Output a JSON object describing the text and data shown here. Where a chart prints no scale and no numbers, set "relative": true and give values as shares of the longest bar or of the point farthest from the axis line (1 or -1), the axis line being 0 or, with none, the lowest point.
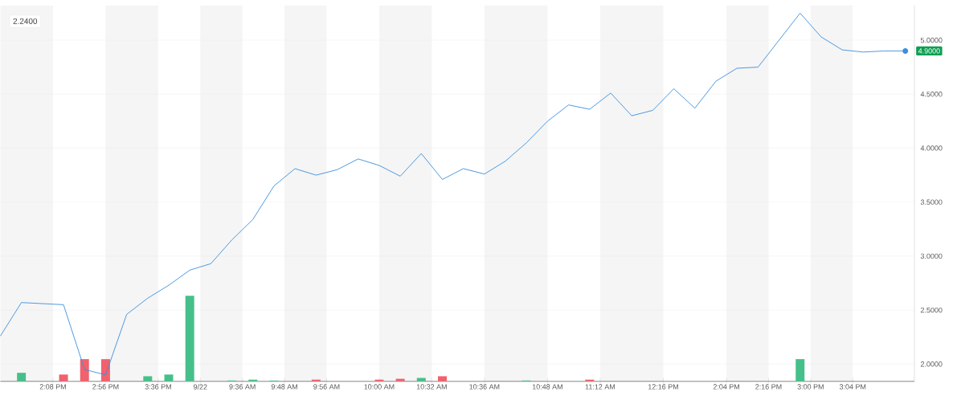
{
  "chart_data": [
    {
      "type": "line",
      "categories": [
        null,
        null,
        null,
        null,
        null,
        "2:08 PM",
        null,
        null,
        null,
        null,
        "2:56 PM",
        null,
        null,
        null,
        null,
        "3:36 PM",
        null,
        null,
        null,
        "9/22",
        null,
        null,
        null,
        "9:36 AM",
        null,
        null,
        null,
        "9:48 AM",
        null,
        null,
        null,
        "9:56 AM",
        null,
        null,
        null,
        null,
        "10:00 AM",
        null,
        null,
        null,
        null,
        "10:32 AM",
        null,
        null,
        null,
        null,
        "10:36 AM",
        null,
        null,
        null,
        null,
        null,
        "10:48 AM",
        null,
        null,
        null,
        null,
        "11:12 AM",
        null,
        null,
        null,
        null,
        null,
        "12:16 PM",
        null,
        null,
        null,
        null,
        null,
        "2:04 PM",
        null,
        null,
        null,
        "2:16 PM",
        null,
        null,
        null,
        "3:00 PM",
        null,
        null,
        null,
        "3:04 PM",
        null,
        null,
        null,
        null,
        null
      ],
      "ylim": [
        1.84,
        5.32
      ],
      "yticks": [
        {
          "value": 2,
          "label": "2.0000"
        },
        {
          "value": 2.5,
          "label": "2.5000"
        },
        {
          "value": 3,
          "label": "3.0000"
        },
        {
          "value": 3.5,
          "label": "3.5000"
        },
        {
          "value": 4,
          "label": "4.0000"
        },
        {
          "value": 4.5,
          "label": "4.5000"
        },
        {
          "value": 5,
          "label": "5.0000"
        }
      ],
      "grid": "y",
      "tick_labels": "y",
      "bands": [
        {
          "axis": "x",
          "from": "2:56 PM",
          "to": "3:36 PM",
          "color": "#f5f5f5"
        },
        {
          "axis": "x",
          "from": "9/22",
          "to": "9:36 AM",
          "color": "#f5f5f5"
        },
        {
          "axis": "x",
          "from": "9:48 AM",
          "to": "9:56 AM",
          "color": "#f5f5f5"
        },
        {
          "axis": "x",
          "from": "10:00 AM",
          "to": "10:32 AM",
          "color": "#f5f5f5"
        },
        {
          "axis": "x",
          "from": "10:36 AM",
          "to": "10:48 AM",
          "color": "#f5f5f5"
        },
        {
          "axis": "x",
          "from": "11:12 AM",
          "to": "12:16 PM",
          "color": "#f5f5f5"
        },
        {
          "axis": "x",
          "from": "2:04 PM",
          "to": "2:16 PM",
          "color": "#f5f5f5"
        },
        {
          "axis": "x",
          "from": "3:00 PM",
          "to": "3:04 PM",
          "color": "#f5f5f5"
        }
      ],
      "series": [
        {
          "color": "#3b8fdd",
          "values": [
            2.26,
            null,
            2.57,
            null,
            null,
            null,
            2.55,
            null,
            1.95,
            null,
            1.9,
            null,
            2.46,
            null,
            2.61,
            null,
            2.73,
            null,
            2.87,
            null,
            2.93,
            null,
            3.15,
            null,
            3.34,
            null,
            3.65,
            null,
            3.81,
            null,
            3.75,
            null,
            3.8,
            null,
            3.9,
            null,
            3.84,
            null,
            3.74,
            null,
            3.95,
            null,
            3.71,
            null,
            3.81,
            null,
            3.76,
            null,
            3.88,
            null,
            4.05,
            null,
            4.25,
            null,
            4.4,
            null,
            4.36,
            null,
            4.51,
            null,
            4.3,
            null,
            4.35,
            null,
            4.55,
            null,
            4.37,
            null,
            4.62,
            null,
            4.74,
            null,
            4.75,
            null,
            null,
            null,
            5.25,
            null,
            5.03,
            null,
            4.91,
            null,
            4.89,
            null,
            4.9,
            null,
            4.9
          ]
        }
      ],
      "annotations": [
        "2.2400",
        {
          "text": "4.9000",
          "y": 4.9
        }
      ]
    },
    {
      "type": "bar",
      "relative": true,
      "tick_labels": "x",
      "categories": [
        null,
        null,
        null,
        null,
        null,
        "2:08 PM",
        null,
        null,
        null,
        null,
        "2:56 PM",
        null,
        null,
        null,
        null,
        "3:36 PM",
        null,
        null,
        null,
        "9/22",
        null,
        null,
        null,
        "9:36 AM",
        null,
        null,
        null,
        "9:48 AM",
        null,
        null,
        null,
        "9:56 AM",
        null,
        null,
        null,
        null,
        "10:00 AM",
        null,
        null,
        null,
        null,
        "10:32 AM",
        null,
        null,
        null,
        null,
        "10:36 AM",
        null,
        null,
        null,
        null,
        null,
        "10:48 AM",
        null,
        null,
        null,
        null,
        "11:12 AM",
        null,
        null,
        null,
        null,
        null,
        "12:16 PM",
        null,
        null,
        null,
        null,
        null,
        "2:04 PM",
        null,
        null,
        null,
        "2:16 PM",
        null,
        null,
        null,
        "3:00 PM",
        null,
        null,
        null,
        "3:04 PM",
        null,
        null,
        null,
        null,
        null
      ],
      "values": [
        null,
        null,
        0.1,
        null,
        null,
        null,
        0.08,
        null,
        0.26,
        null,
        0.26,
        null,
        null,
        null,
        0.06,
        null,
        0.08,
        null,
        1,
        null,
        null,
        null,
        0.01,
        null,
        0.02,
        null,
        0.01,
        null,
        null,
        null,
        0.02,
        null,
        null,
        null,
        null,
        null,
        0.02,
        null,
        0.03,
        null,
        0.04,
        null,
        0.06,
        null,
        null,
        null,
        null,
        null,
        null,
        null,
        0.01,
        null,
        null,
        null,
        null,
        null,
        0.02,
        null,
        null,
        null,
        null,
        null,
        null,
        null,
        null,
        null,
        null,
        null,
        null,
        null,
        null,
        null,
        null,
        null,
        null,
        null,
        0.26,
        null,
        null,
        null,
        null,
        null,
        null,
        null,
        null,
        null,
        null
      ],
      "colors": [
        null,
        null,
        "#46c08a",
        null,
        null,
        null,
        "#f0626d",
        null,
        "#f0626d",
        null,
        "#f0626d",
        null,
        null,
        null,
        "#46c08a",
        null,
        "#46c08a",
        null,
        "#46c08a",
        null,
        null,
        null,
        "#46c08a",
        null,
        "#46c08a",
        null,
        "#46c08a",
        null,
        null,
        null,
        "#f0626d",
        null,
        null,
        null,
        null,
        null,
        "#f0626d",
        null,
        "#f0626d",
        null,
        "#46c08a",
        null,
        "#f0626d",
        null,
        null,
        null,
        null,
        null,
        null,
        null,
        "#46c08a",
        null,
        null,
        null,
        null,
        null,
        "#f0626d",
        null,
        null,
        null,
        null,
        null,
        null,
        null,
        null,
        null,
        null,
        null,
        null,
        null,
        null,
        null,
        null,
        null,
        null,
        null,
        "#46c08a",
        null,
        null,
        null,
        null,
        null,
        null,
        null,
        null,
        null,
        null
      ]
    }
  ]
}
